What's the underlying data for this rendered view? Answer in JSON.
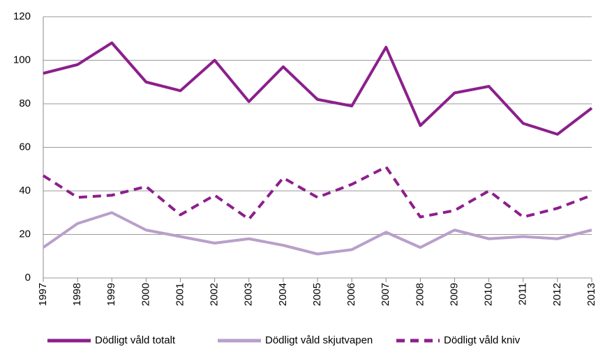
{
  "chart_data": {
    "type": "line",
    "categories": [
      "1997",
      "1998",
      "1999",
      "2000",
      "2001",
      "2002",
      "2003",
      "2004",
      "2005",
      "2006",
      "2007",
      "2008",
      "2009",
      "2010",
      "2011",
      "2012",
      "2013"
    ],
    "series": [
      {
        "name": "Dödligt våld totalt",
        "color": "#8c1f8c",
        "dash": false,
        "values": [
          94,
          98,
          108,
          90,
          86,
          100,
          81,
          97,
          82,
          79,
          106,
          70,
          85,
          88,
          71,
          66,
          78
        ]
      },
      {
        "name": "Dödligt våld skjutvapen",
        "color": "#b99fcb",
        "dash": false,
        "values": [
          14,
          25,
          30,
          22,
          19,
          16,
          18,
          15,
          11,
          13,
          21,
          14,
          22,
          18,
          19,
          18,
          22
        ]
      },
      {
        "name": "Dödligt våld kniv",
        "color": "#8c1f8c",
        "dash": true,
        "values": [
          47,
          37,
          38,
          42,
          29,
          38,
          27,
          46,
          37,
          43,
          51,
          28,
          31,
          40,
          28,
          32,
          38
        ]
      }
    ],
    "ylim": [
      0,
      120
    ],
    "yticks": [
      0,
      20,
      40,
      60,
      80,
      100,
      120
    ],
    "grid": true,
    "legend": "bottom"
  }
}
